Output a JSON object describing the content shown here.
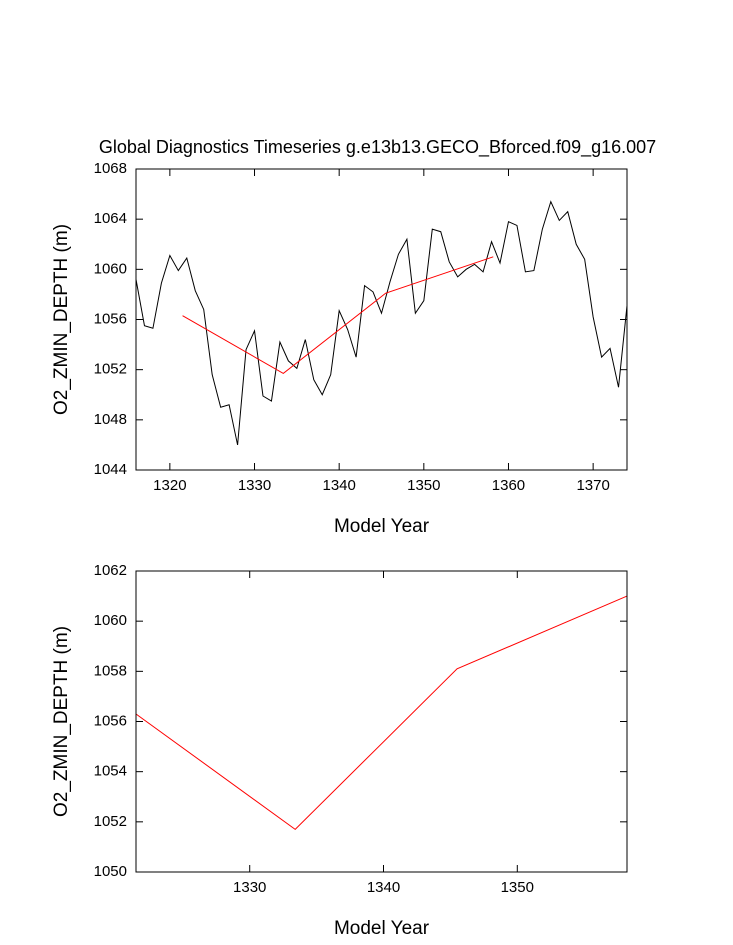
{
  "chart_data": [
    {
      "type": "line",
      "title": "Global Diagnostics Timeseries g.e13b13.GECO_Bforced.f09_g16.007",
      "x_label": "Model Year",
      "y_label": "O2_ZMIN_DEPTH (m)",
      "xlim": [
        1316,
        1374
      ],
      "xticks": [
        1320,
        1330,
        1340,
        1350,
        1360,
        1370
      ],
      "ylim": [
        1044,
        1068
      ],
      "yticks": [
        1044,
        1048,
        1052,
        1056,
        1060,
        1064,
        1068
      ],
      "series": [
        {
          "color": "#000000",
          "x": [
            1316,
            1317,
            1318,
            1319,
            1320,
            1321,
            1322,
            1323,
            1324,
            1325,
            1326,
            1327,
            1328,
            1329,
            1330,
            1331,
            1332,
            1333,
            1334,
            1335,
            1336,
            1337,
            1338,
            1339,
            1340,
            1341,
            1342,
            1343,
            1344,
            1345,
            1346,
            1347,
            1348,
            1349,
            1350,
            1351,
            1352,
            1353,
            1354,
            1355,
            1356,
            1357,
            1358,
            1359,
            1360,
            1361,
            1362,
            1363,
            1364,
            1365,
            1366,
            1367,
            1368,
            1369,
            1370,
            1371,
            1372,
            1373,
            1374
          ],
          "values": [
            1059.2,
            1055.5,
            1055.3,
            1058.9,
            1061.1,
            1059.9,
            1060.9,
            1058.3,
            1056.8,
            1051.6,
            1049.0,
            1049.2,
            1046.0,
            1053.6,
            1055.1,
            1049.9,
            1049.5,
            1054.2,
            1052.7,
            1052.1,
            1054.4,
            1051.2,
            1050.0,
            1051.6,
            1056.7,
            1055.2,
            1053.0,
            1058.7,
            1058.2,
            1056.5,
            1059.0,
            1061.2,
            1062.4,
            1056.5,
            1057.5,
            1063.2,
            1063.0,
            1060.6,
            1059.4,
            1060.0,
            1060.4,
            1059.8,
            1062.2,
            1060.5,
            1063.8,
            1063.5,
            1059.8,
            1059.9,
            1063.2,
            1065.4,
            1063.9,
            1064.6,
            1062.0,
            1060.8,
            1056.2,
            1053.0,
            1053.7,
            1050.6,
            1057.1
          ]
        },
        {
          "color": "#ff0000",
          "x": [
            1321.5,
            1333.4,
            1345.5,
            1358.2
          ],
          "values": [
            1056.3,
            1051.7,
            1058.1,
            1061.0
          ]
        }
      ]
    },
    {
      "type": "line",
      "x_label": "Model Year",
      "y_label": "O2_ZMIN_DEPTH (m)",
      "xlim": [
        1321.5,
        1358.2
      ],
      "xticks": [
        1330,
        1340,
        1350
      ],
      "ylim": [
        1050,
        1062
      ],
      "yticks": [
        1050,
        1052,
        1054,
        1056,
        1058,
        1060,
        1062
      ],
      "series": [
        {
          "color": "#ff0000",
          "x": [
            1321.5,
            1333.4,
            1345.5,
            1358.2
          ],
          "values": [
            1056.3,
            1051.7,
            1058.1,
            1061.0
          ]
        }
      ]
    }
  ]
}
